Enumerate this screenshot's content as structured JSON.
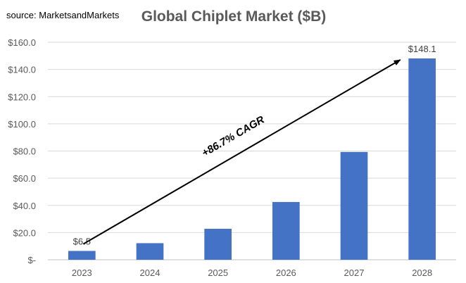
{
  "source_text": "source: MarketsandMarkets",
  "chart_data": {
    "type": "bar",
    "title": "Global Chiplet Market ($B)",
    "categories": [
      "2023",
      "2024",
      "2025",
      "2026",
      "2027",
      "2028"
    ],
    "values": [
      6.5,
      12.2,
      22.8,
      42.5,
      79.3,
      148.1
    ],
    "data_labels": [
      "$6.5",
      "",
      "",
      "",
      "",
      "$148.1"
    ],
    "ylim": [
      0,
      160
    ],
    "yticks": [
      0,
      20,
      40,
      60,
      80,
      100,
      120,
      140,
      160
    ],
    "ytick_labels": [
      "$-",
      "$20.0",
      "$40.0",
      "$60.0",
      "$80.0",
      "$100.0",
      "$120.0",
      "$140.0",
      "$160.0"
    ],
    "grid": true,
    "bar_color": "#4472C4",
    "grid_color": "#D9D9D9",
    "annotation": {
      "text": "+86.7% CAGR",
      "arrow_from": [
        "2023",
        9
      ],
      "arrow_to": [
        "2028",
        145
      ]
    }
  }
}
